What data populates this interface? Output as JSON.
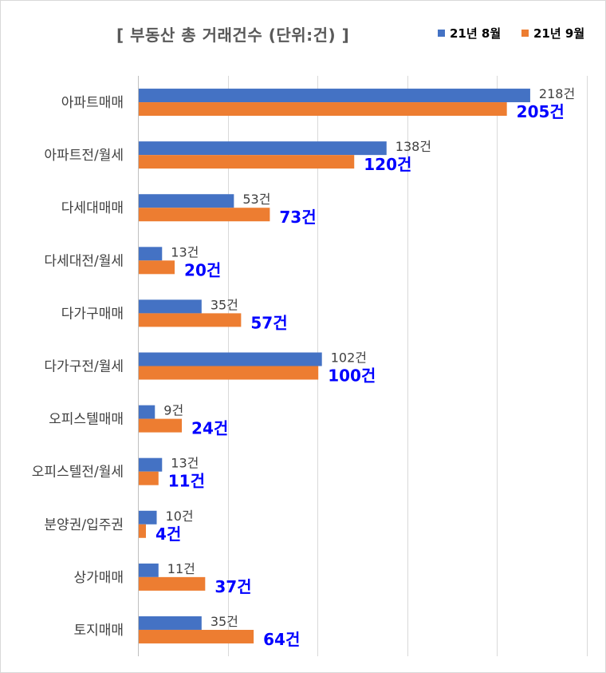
{
  "chart_data": {
    "type": "bar",
    "orientation": "horizontal",
    "title": "[ 부동산 총 거래건수 (단위:건) ]",
    "categories": [
      "아파트매매",
      "아파트전/월세",
      "다세대매매",
      "다세대전/월세",
      "다가구매매",
      "다가구전/월세",
      "오피스텔매매",
      "오피스텔전/월세",
      "분양권/입주권",
      "상가매매",
      "토지매매"
    ],
    "series": [
      {
        "name": "21년 8월",
        "color": "#4472c4",
        "values": [
          218,
          138,
          53,
          13,
          35,
          102,
          9,
          13,
          10,
          11,
          35
        ],
        "labels": [
          "218건",
          "138건",
          "53건",
          "13건",
          "35건",
          "102건",
          "9건",
          "13건",
          "10건",
          "11건",
          "35건"
        ]
      },
      {
        "name": "21년 9월",
        "color": "#ed7d31",
        "values": [
          205,
          120,
          73,
          20,
          57,
          100,
          24,
          11,
          4,
          37,
          64
        ],
        "labels": [
          "205건",
          "120건",
          "73건",
          "20건",
          "57건",
          "100건",
          "24건",
          "11건",
          "4건",
          "37건",
          "64건"
        ]
      }
    ],
    "xlim": [
      0,
      250
    ],
    "grid": true,
    "legend_position": "top-right",
    "label_colors": {
      "series1": "#404040",
      "series2": "#0000ff"
    }
  }
}
